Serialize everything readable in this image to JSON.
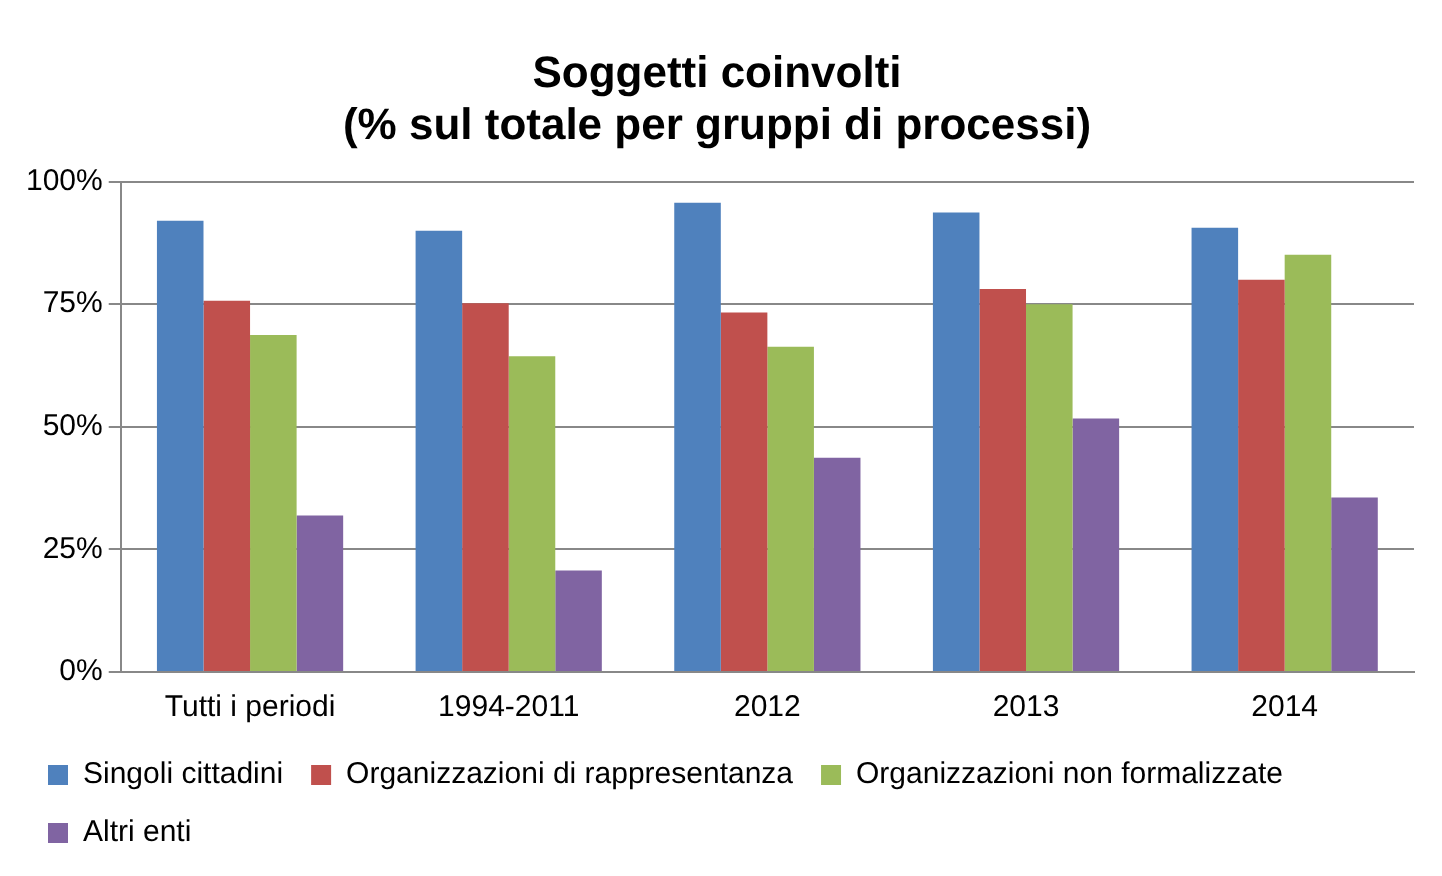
{
  "chart_data": {
    "type": "bar",
    "title": [
      "Soggetti coinvolti",
      "(% sul totale per gruppi di processi)"
    ],
    "categories": [
      "Tutti i periodi",
      "1994-2011",
      "2012",
      "2013",
      "2014"
    ],
    "series": [
      {
        "name": "Singoli cittadini",
        "color": "#4f81bd",
        "values": [
          92,
          90,
          95.7,
          93.7,
          90.6
        ]
      },
      {
        "name": "Organizzazioni di rappresentanza",
        "color": "#c0504d",
        "values": [
          75.7,
          75.2,
          73.3,
          78.1,
          80
        ]
      },
      {
        "name": "Organizzazioni non formalizzate",
        "color": "#9bbb59",
        "values": [
          68.7,
          64.4,
          66.3,
          75,
          85.1
        ]
      },
      {
        "name": "Altri enti",
        "color": "#8064a2",
        "values": [
          31.9,
          20.7,
          43.7,
          51.7,
          35.6
        ]
      }
    ],
    "ylim": [
      0,
      100
    ],
    "yticks": [
      {
        "value": 0,
        "label": "0%"
      },
      {
        "value": 25,
        "label": "25%"
      },
      {
        "value": 50,
        "label": "50%"
      },
      {
        "value": 75,
        "label": "75%"
      },
      {
        "value": 100,
        "label": "100%"
      }
    ],
    "grid": "y",
    "legend": "bottom"
  }
}
